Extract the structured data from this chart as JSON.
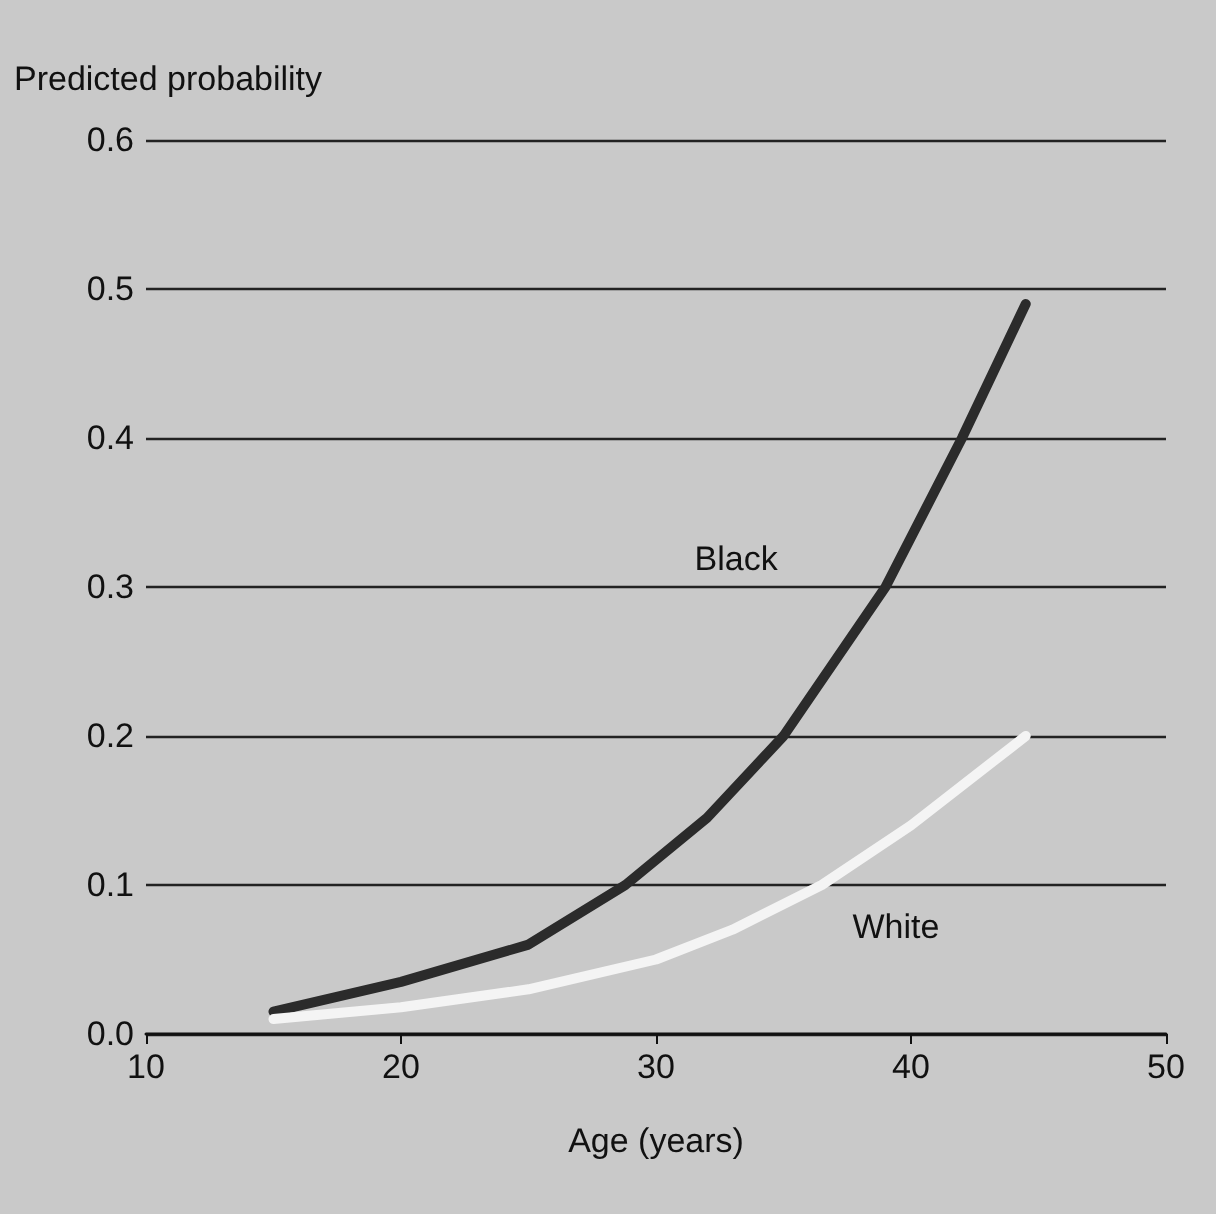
{
  "chart_data": {
    "type": "line",
    "xlabel": "Age (years)",
    "ylabel": "Predicted probability",
    "xlim": [
      10,
      50
    ],
    "xticks": [
      10,
      20,
      30,
      40,
      50
    ],
    "ylim": [
      0,
      0.6
    ],
    "yticks": [
      {
        "value": 0,
        "label": "0.0"
      },
      0.1,
      0.2,
      0.3,
      0.4,
      0.5,
      0.6
    ],
    "grid": "y",
    "legend": false,
    "marker": "none",
    "line_style": "solid",
    "series": [
      {
        "name": "Black",
        "color": "#2b2b2b",
        "x": [
          15,
          20,
          25,
          28.8,
          32,
          35,
          37,
          39,
          42,
          44.5
        ],
        "values": [
          0.015,
          0.035,
          0.06,
          0.1,
          0.145,
          0.2,
          0.25,
          0.3,
          0.4,
          0.49
        ]
      },
      {
        "name": "White",
        "color": "#f4f4f4",
        "x": [
          15,
          20,
          25,
          30,
          33,
          36.5,
          40,
          44.5
        ],
        "values": [
          0.01,
          0.018,
          0.03,
          0.05,
          0.07,
          0.1,
          0.14,
          0.2
        ]
      }
    ]
  }
}
